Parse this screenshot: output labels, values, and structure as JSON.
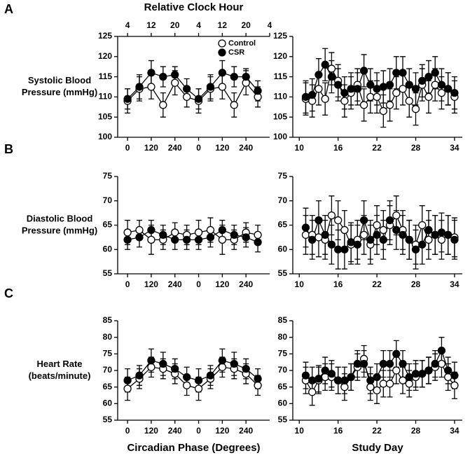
{
  "chart_data": [
    {
      "type": "line",
      "panel": "A",
      "ylabel": [
        "Systolic Blood",
        "Pressure (mmHg)"
      ],
      "x2label": "Relative Clock Hour",
      "x": [
        0,
        60,
        120,
        180,
        240,
        300,
        360,
        420,
        480,
        540,
        600,
        660
      ],
      "xlim": [
        -50,
        720
      ],
      "xticks": [
        0,
        120,
        240,
        {
          "value": 360,
          "label": "0"
        },
        {
          "value": 480,
          "label": "120"
        },
        {
          "value": 600,
          "label": "240"
        }
      ],
      "x2ticks": [
        {
          "value": 0,
          "label": "4"
        },
        {
          "value": 120,
          "label": "12"
        },
        {
          "value": 240,
          "label": "20"
        },
        {
          "value": 360,
          "label": "4"
        },
        {
          "value": 480,
          "label": "12"
        },
        {
          "value": 600,
          "label": "20"
        },
        {
          "value": 720,
          "label": "4"
        }
      ],
      "ylim": [
        100,
        125
      ],
      "yticks": [
        100,
        105,
        110,
        115,
        120,
        125
      ],
      "legend": "upper right",
      "series": [
        {
          "name": "Control",
          "color": "#000000",
          "marker_fill": "#ffffff",
          "values": [
            109,
            112,
            112.5,
            108,
            113.5,
            110,
            109,
            112,
            112.5,
            108,
            113.5,
            110
          ],
          "errors": [
            3,
            3,
            3,
            3,
            3,
            2.5,
            3,
            3,
            3,
            3,
            3,
            2.5
          ]
        },
        {
          "name": "CSR",
          "color": "#000000",
          "marker_fill": "#000000",
          "values": [
            109.5,
            112.5,
            116,
            115,
            115.5,
            112,
            109.5,
            112.5,
            116,
            115,
            115,
            111.5
          ],
          "errors": [
            2.5,
            3,
            3,
            2.5,
            2,
            2.5,
            2.5,
            3,
            3,
            2.5,
            2,
            2.5
          ]
        }
      ]
    },
    {
      "type": "line",
      "x": [
        11,
        12,
        13,
        14,
        15,
        16,
        17,
        18,
        19,
        20,
        21,
        22,
        23,
        24,
        25,
        26,
        27,
        28,
        29,
        30,
        31,
        32,
        33,
        34
      ],
      "xlim": [
        9,
        35.2
      ],
      "xticks": [
        10,
        16,
        22,
        28,
        34
      ],
      "ylim": [
        100,
        125
      ],
      "yticks": [
        100,
        105,
        110,
        115,
        120,
        125
      ],
      "series": [
        {
          "color": "#000000",
          "marker_fill": "#ffffff",
          "values": [
            109.5,
            109,
            112,
            109.5,
            117,
            114,
            109,
            111,
            113,
            108,
            110,
            110,
            106.5,
            108,
            111,
            112,
            109,
            107,
            113,
            110,
            113,
            111,
            112,
            110
          ],
          "errors": [
            4,
            4,
            4,
            4,
            4,
            4,
            4,
            4,
            4,
            4,
            4,
            4,
            4,
            4,
            4,
            4,
            4,
            4,
            4,
            4,
            4,
            4,
            4,
            4
          ]
        },
        {
          "color": "#000000",
          "marker_fill": "#000000",
          "values": [
            110,
            110.5,
            115.5,
            118,
            115,
            113,
            111,
            112,
            112,
            116.5,
            113,
            112,
            112.5,
            113,
            116,
            116,
            113,
            112,
            114,
            115,
            116,
            113,
            112,
            111
          ],
          "errors": [
            4,
            4,
            4,
            4,
            4,
            4,
            4,
            4,
            4,
            4,
            4,
            4,
            4,
            4,
            4,
            4,
            4,
            4,
            4,
            4,
            4,
            4,
            4,
            4
          ]
        }
      ]
    },
    {
      "type": "line",
      "panel": "B",
      "ylabel": [
        "Diastolic Blood",
        "Pressure (mmHg)"
      ],
      "x": [
        0,
        60,
        120,
        180,
        240,
        300,
        360,
        420,
        480,
        540,
        600,
        660
      ],
      "xlim": [
        -50,
        720
      ],
      "xticks": [
        0,
        120,
        240,
        {
          "value": 360,
          "label": "0"
        },
        {
          "value": 480,
          "label": "120"
        },
        {
          "value": 600,
          "label": "240"
        }
      ],
      "ylim": [
        55,
        75
      ],
      "yticks": [
        55,
        60,
        65,
        70,
        75
      ],
      "series": [
        {
          "color": "#000000",
          "marker_fill": "#ffffff",
          "values": [
            63.5,
            64,
            62,
            62,
            63.5,
            63,
            63.5,
            64,
            62,
            62,
            63.5,
            63
          ],
          "errors": [
            2.5,
            2,
            3,
            2,
            2,
            2,
            2.5,
            2.5,
            3,
            2,
            2,
            2
          ]
        },
        {
          "color": "#000000",
          "marker_fill": "#000000",
          "values": [
            62,
            62.5,
            64,
            63,
            62,
            62,
            62,
            62.5,
            64,
            63,
            62.5,
            61.5
          ],
          "errors": [
            2,
            2,
            2,
            2,
            2,
            2,
            2,
            2,
            2,
            2,
            2,
            2
          ]
        }
      ]
    },
    {
      "type": "line",
      "x": [
        11,
        12,
        13,
        14,
        15,
        16,
        17,
        18,
        19,
        20,
        21,
        22,
        23,
        24,
        25,
        26,
        27,
        28,
        29,
        30,
        31,
        32,
        33,
        34
      ],
      "xlim": [
        9,
        35.2
      ],
      "xticks": [
        10,
        16,
        22,
        28,
        34
      ],
      "ylim": [
        55,
        75
      ],
      "yticks": [
        55,
        60,
        65,
        70,
        75
      ],
      "series": [
        {
          "color": "#000000",
          "marker_fill": "#ffffff",
          "values": [
            63,
            63,
            62.5,
            62,
            67,
            66,
            64,
            61,
            62,
            63,
            61,
            65,
            64,
            65,
            67,
            64,
            62,
            61,
            65,
            62,
            63,
            62,
            63,
            62.5
          ],
          "errors": [
            4,
            4,
            4,
            4,
            4,
            4,
            4,
            4,
            4,
            4,
            4,
            4,
            4,
            4,
            4,
            4,
            4,
            4,
            4,
            4,
            4,
            4,
            4,
            4
          ]
        },
        {
          "color": "#000000",
          "marker_fill": "#000000",
          "values": [
            64.5,
            62,
            66,
            63,
            61,
            60,
            60,
            61.5,
            61,
            66,
            62,
            63,
            62,
            66,
            64,
            63,
            62,
            60,
            61,
            64,
            63,
            63.5,
            63,
            62
          ],
          "errors": [
            4,
            4,
            4,
            4,
            4,
            4,
            4,
            4,
            4,
            4,
            4,
            4,
            4,
            4,
            4,
            4,
            4,
            4,
            4,
            4,
            4,
            4,
            4,
            4
          ]
        }
      ]
    },
    {
      "type": "line",
      "panel": "C",
      "ylabel": [
        "Heart Rate",
        "(beats/minute)"
      ],
      "xlabel": "Circadian Phase (Degrees)",
      "x": [
        0,
        60,
        120,
        180,
        240,
        300,
        360,
        420,
        480,
        540,
        600,
        660
      ],
      "xlim": [
        -50,
        720
      ],
      "xticks": [
        0,
        120,
        240,
        {
          "value": 360,
          "label": "0"
        },
        {
          "value": 480,
          "label": "120"
        },
        {
          "value": 600,
          "label": "240"
        }
      ],
      "ylim": [
        55,
        85
      ],
      "yticks": [
        55,
        60,
        65,
        70,
        75,
        80,
        85
      ],
      "series": [
        {
          "color": "#000000",
          "marker_fill": "#ffffff",
          "values": [
            64.5,
            67.5,
            71,
            70.5,
            69,
            65.5,
            64.5,
            67.5,
            71,
            70.5,
            69,
            65.5
          ],
          "errors": [
            3.5,
            3,
            3,
            3,
            3,
            3,
            3.5,
            3,
            3,
            3,
            3,
            3
          ]
        },
        {
          "color": "#000000",
          "marker_fill": "#000000",
          "values": [
            67,
            68.5,
            73,
            72,
            70.5,
            68,
            67,
            68.5,
            73,
            72,
            70.5,
            67.5
          ],
          "errors": [
            3.5,
            3,
            3.5,
            3.5,
            3,
            3,
            3.5,
            3,
            3.5,
            3.5,
            3,
            3
          ]
        }
      ]
    },
    {
      "type": "line",
      "xlabel": "Study Day",
      "x": [
        11,
        12,
        13,
        14,
        15,
        16,
        17,
        18,
        19,
        20,
        21,
        22,
        23,
        24,
        25,
        26,
        27,
        28,
        29,
        30,
        31,
        32,
        33,
        34
      ],
      "xlim": [
        9,
        35.2
      ],
      "xticks": [
        10,
        16,
        22,
        28,
        34
      ],
      "ylim": [
        55,
        85
      ],
      "yticks": [
        55,
        60,
        65,
        70,
        75,
        80,
        85
      ],
      "series": [
        {
          "color": "#000000",
          "marker_fill": "#ffffff",
          "values": [
            67,
            63.5,
            67,
            68,
            68,
            67,
            65,
            68,
            71,
            73.5,
            65,
            64,
            66,
            66,
            70,
            67,
            66,
            68,
            69,
            70,
            71,
            72,
            68,
            65.5
          ],
          "errors": [
            4,
            4,
            4,
            4,
            4,
            4,
            4,
            4,
            4,
            4,
            4,
            4,
            4,
            4,
            4,
            4,
            4,
            4,
            4,
            4,
            4,
            4,
            4,
            4
          ]
        },
        {
          "color": "#000000",
          "marker_fill": "#000000",
          "values": [
            68.5,
            67,
            67.5,
            70,
            69,
            67,
            67,
            68,
            72,
            72,
            67,
            68,
            72,
            72,
            75,
            72,
            68,
            69,
            69,
            70,
            72,
            76,
            70,
            68.5
          ],
          "errors": [
            4,
            4,
            4,
            4,
            4,
            4,
            4,
            4,
            4,
            4,
            4,
            4,
            4,
            4,
            4,
            4,
            4,
            4,
            4,
            4,
            4,
            4,
            4,
            4
          ]
        }
      ]
    }
  ]
}
